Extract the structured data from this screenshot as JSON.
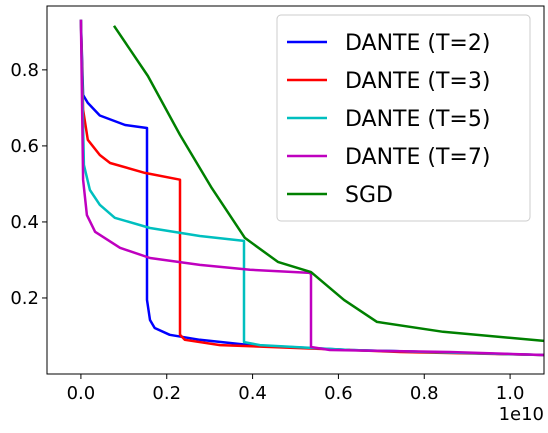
{
  "chart_data": {
    "type": "line",
    "x_offset_label": "1e10",
    "xlim": [
      -0.079,
      1.079
    ],
    "ylim": [
      0.0,
      0.968
    ],
    "xticks": [
      {
        "value": 0,
        "label": "0.0"
      },
      0.2,
      0.4,
      0.6,
      0.8,
      {
        "value": 1,
        "label": "1.0"
      }
    ],
    "yticks": [
      0.2,
      0.4,
      0.6,
      0.8
    ],
    "legend": "upper right",
    "series": [
      {
        "name": "DANTE (T=2)",
        "color": "#0000ff",
        "x": [
          0,
          0.005,
          0.016,
          0.044,
          0.103,
          0.154,
          0.154,
          0.161,
          0.172,
          0.207,
          0.277,
          0.394,
          0.627,
          1.079
        ],
        "values": [
          0.932,
          0.734,
          0.713,
          0.68,
          0.655,
          0.647,
          0.195,
          0.142,
          0.121,
          0.103,
          0.09,
          0.076,
          0.063,
          0.05
        ]
      },
      {
        "name": "DANTE (T=3)",
        "color": "#ff0000",
        "x": [
          0,
          0.005,
          0.016,
          0.044,
          0.068,
          0.149,
          0.231,
          0.231,
          0.242,
          0.324,
          0.51,
          0.744,
          1.079
        ],
        "values": [
          0.932,
          0.695,
          0.616,
          0.576,
          0.555,
          0.529,
          0.511,
          0.103,
          0.09,
          0.076,
          0.068,
          0.058,
          0.05
        ]
      },
      {
        "name": "DANTE (T=5)",
        "color": "#00bfbf",
        "x": [
          0,
          0.007,
          0.021,
          0.044,
          0.079,
          0.161,
          0.277,
          0.38,
          0.38,
          0.417,
          0.627,
          1.079
        ],
        "values": [
          0.932,
          0.55,
          0.484,
          0.445,
          0.411,
          0.384,
          0.363,
          0.35,
          0.084,
          0.076,
          0.063,
          0.05
        ]
      },
      {
        "name": "DANTE (T=7)",
        "color": "#bf00bf",
        "x": [
          0,
          0.005,
          0.014,
          0.033,
          0.091,
          0.161,
          0.277,
          0.394,
          0.534,
          0.536,
          0.536,
          0.58,
          0.86,
          1.079
        ],
        "values": [
          0.932,
          0.511,
          0.418,
          0.374,
          0.332,
          0.305,
          0.287,
          0.274,
          0.266,
          0.261,
          0.071,
          0.063,
          0.058,
          0.05
        ]
      },
      {
        "name": "SGD",
        "color": "#008000",
        "x": [
          0.077,
          0.156,
          0.231,
          0.305,
          0.382,
          0.459,
          0.536,
          0.613,
          0.69,
          0.844,
          1.079
        ],
        "values": [
          0.916,
          0.784,
          0.629,
          0.489,
          0.358,
          0.295,
          0.268,
          0.195,
          0.137,
          0.111,
          0.087
        ]
      }
    ]
  }
}
